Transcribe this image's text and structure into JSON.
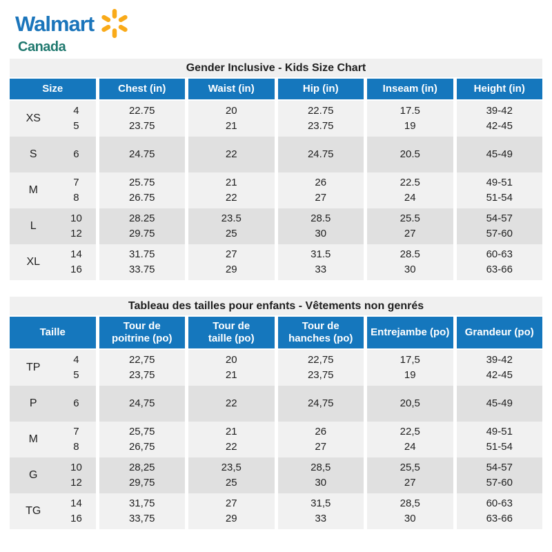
{
  "logo": {
    "brand": "Walmart",
    "country": "Canada"
  },
  "colors": {
    "header_blue": "#1577bd",
    "row_light": "#f1f1f1",
    "row_dark": "#e0e0e0",
    "title_bar": "#f0f0f0",
    "text_dark": "#1e1e1e",
    "logo_blue": "#1b75bb",
    "logo_teal": "#20796f",
    "spark_yellow": "#f9aa19"
  },
  "tables": [
    {
      "language": "English",
      "title": "Gender Inclusive - Kids Size Chart",
      "columns": [
        [
          "Size"
        ],
        [
          "Chest (in)"
        ],
        [
          "Waist (in)"
        ],
        [
          "Hip (in)"
        ],
        [
          "Inseam (in)"
        ],
        [
          "Height (in)"
        ]
      ],
      "rows": [
        {
          "size": "XS",
          "size_numbers": [
            "4",
            "5"
          ],
          "cells": [
            [
              "22.75",
              "23.75"
            ],
            [
              "20",
              "21"
            ],
            [
              "22.75",
              "23.75"
            ],
            [
              "17.5",
              "19"
            ],
            [
              "39-42",
              "42-45"
            ]
          ]
        },
        {
          "size": "S",
          "size_numbers": [
            "6"
          ],
          "cells": [
            [
              "24.75"
            ],
            [
              "22"
            ],
            [
              "24.75"
            ],
            [
              "20.5"
            ],
            [
              "45-49"
            ]
          ]
        },
        {
          "size": "M",
          "size_numbers": [
            "7",
            "8"
          ],
          "cells": [
            [
              "25.75",
              "26.75"
            ],
            [
              "21",
              "22"
            ],
            [
              "26",
              "27"
            ],
            [
              "22.5",
              "24"
            ],
            [
              "49-51",
              "51-54"
            ]
          ]
        },
        {
          "size": "L",
          "size_numbers": [
            "10",
            "12"
          ],
          "cells": [
            [
              "28.25",
              "29.75"
            ],
            [
              "23.5",
              "25"
            ],
            [
              "28.5",
              "30"
            ],
            [
              "25.5",
              "27"
            ],
            [
              "54-57",
              "57-60"
            ]
          ]
        },
        {
          "size": "XL",
          "size_numbers": [
            "14",
            "16"
          ],
          "cells": [
            [
              "31.75",
              "33.75"
            ],
            [
              "27",
              "29"
            ],
            [
              "31.5",
              "33"
            ],
            [
              "28.5",
              "30"
            ],
            [
              "60-63",
              "63-66"
            ]
          ]
        }
      ]
    },
    {
      "language": "French",
      "title": "Tableau des tailles pour enfants - Vêtements non genrés",
      "columns": [
        [
          "Taille"
        ],
        [
          "Tour de",
          "poitrine (po)"
        ],
        [
          "Tour de",
          "taille (po)"
        ],
        [
          "Tour de",
          "hanches (po)"
        ],
        [
          "Entrejambe (po)"
        ],
        [
          "Grandeur (po)"
        ]
      ],
      "rows": [
        {
          "size": "TP",
          "size_numbers": [
            "4",
            "5"
          ],
          "cells": [
            [
              "22,75",
              "23,75"
            ],
            [
              "20",
              "21"
            ],
            [
              "22,75",
              "23,75"
            ],
            [
              "17,5",
              "19"
            ],
            [
              "39-42",
              "42-45"
            ]
          ]
        },
        {
          "size": "P",
          "size_numbers": [
            "6"
          ],
          "cells": [
            [
              "24,75"
            ],
            [
              "22"
            ],
            [
              "24,75"
            ],
            [
              "20,5"
            ],
            [
              "45-49"
            ]
          ]
        },
        {
          "size": "M",
          "size_numbers": [
            "7",
            "8"
          ],
          "cells": [
            [
              "25,75",
              "26,75"
            ],
            [
              "21",
              "22"
            ],
            [
              "26",
              "27"
            ],
            [
              "22,5",
              "24"
            ],
            [
              "49-51",
              "51-54"
            ]
          ]
        },
        {
          "size": "G",
          "size_numbers": [
            "10",
            "12"
          ],
          "cells": [
            [
              "28,25",
              "29,75"
            ],
            [
              "23,5",
              "25"
            ],
            [
              "28,5",
              "30"
            ],
            [
              "25,5",
              "27"
            ],
            [
              "54-57",
              "57-60"
            ]
          ]
        },
        {
          "size": "TG",
          "size_numbers": [
            "14",
            "16"
          ],
          "cells": [
            [
              "31,75",
              "33,75"
            ],
            [
              "27",
              "29"
            ],
            [
              "31,5",
              "33"
            ],
            [
              "28,5",
              "30"
            ],
            [
              "60-63",
              "63-66"
            ]
          ]
        }
      ]
    }
  ]
}
